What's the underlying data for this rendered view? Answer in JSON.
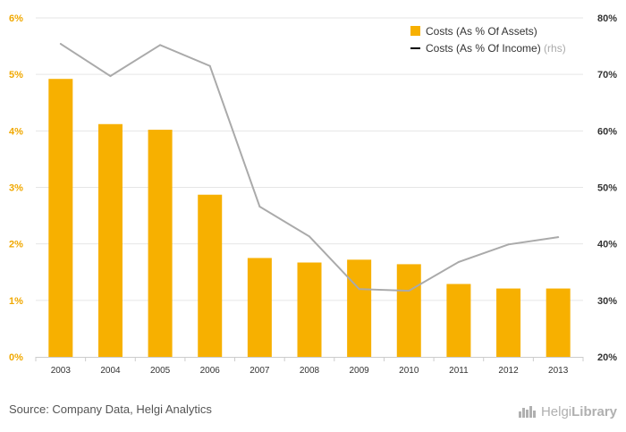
{
  "chart_data": {
    "type": "bar",
    "categories": [
      "2003",
      "2004",
      "2005",
      "2006",
      "2007",
      "2008",
      "2009",
      "2010",
      "2011",
      "2012",
      "2013"
    ],
    "series": [
      {
        "name": "Costs (As % Of Assets)",
        "kind": "bar",
        "axis": "left",
        "color": "#f7b000",
        "values": [
          4.92,
          4.12,
          4.02,
          2.87,
          1.75,
          1.67,
          1.72,
          1.64,
          1.29,
          1.21,
          1.21
        ]
      },
      {
        "name": "Costs (As % Of Income)",
        "legend_suffix": "(rhs)",
        "kind": "line",
        "axis": "right",
        "color": "#aaaaaa",
        "values": [
          75.4,
          69.7,
          75.2,
          71.5,
          46.6,
          41.3,
          32.0,
          31.7,
          36.8,
          39.9,
          41.2
        ]
      }
    ],
    "y_left": {
      "ticks": [
        "0%",
        "1%",
        "2%",
        "3%",
        "4%",
        "5%",
        "6%"
      ],
      "lim": [
        0,
        6
      ],
      "color": "#f0a800"
    },
    "y_right": {
      "ticks": [
        "20%",
        "30%",
        "40%",
        "50%",
        "60%",
        "70%",
        "80%"
      ],
      "lim": [
        20,
        80
      ]
    },
    "grid": true,
    "legend_position": "top-right"
  },
  "footer": {
    "source": "Source: Company Data, Helgi Analytics",
    "logo_part1": "Helgi",
    "logo_part2": "Library"
  }
}
